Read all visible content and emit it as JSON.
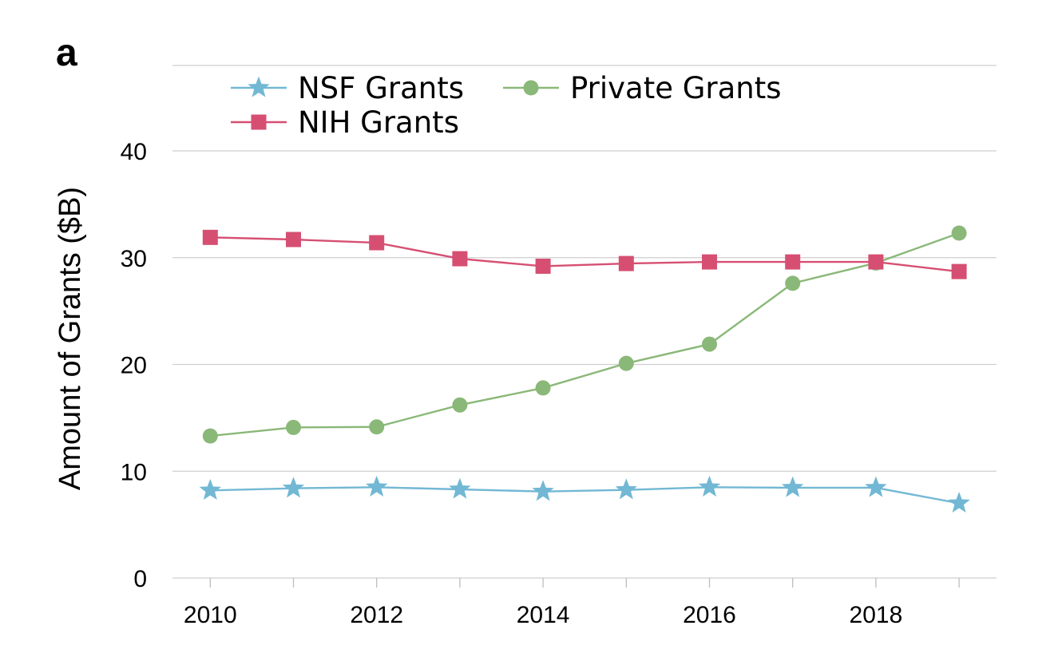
{
  "panel_label": "a",
  "chart_data": {
    "type": "line",
    "title": "",
    "xlabel": "",
    "ylabel": "Amount of Grants ($B)",
    "x": [
      2010,
      2011,
      2012,
      2013,
      2014,
      2015,
      2016,
      2017,
      2018,
      2019
    ],
    "x_tick_labels": [
      "2010",
      "2012",
      "2014",
      "2016",
      "2018"
    ],
    "y_tick_labels": [
      "0",
      "10",
      "20",
      "30",
      "40"
    ],
    "xlim": [
      2009.45,
      2019.45
    ],
    "ylim": [
      0,
      48
    ],
    "grid": true,
    "legend_position": "top-left",
    "series": [
      {
        "name": "NSF Grants",
        "marker": "star",
        "color": "#72b8d4",
        "values": [
          8.2,
          8.4,
          8.5,
          8.3,
          8.1,
          8.25,
          8.5,
          8.45,
          8.45,
          7.0
        ]
      },
      {
        "name": "NIH Grants",
        "marker": "square",
        "color": "#d64f72",
        "values": [
          31.9,
          31.7,
          31.4,
          29.9,
          29.2,
          29.45,
          29.6,
          29.6,
          29.6,
          28.7
        ]
      },
      {
        "name": "Private Grants",
        "marker": "circle",
        "color": "#8ab878",
        "values": [
          13.3,
          14.1,
          14.15,
          16.2,
          17.8,
          20.1,
          21.9,
          27.6,
          29.5,
          32.3
        ]
      }
    ]
  }
}
